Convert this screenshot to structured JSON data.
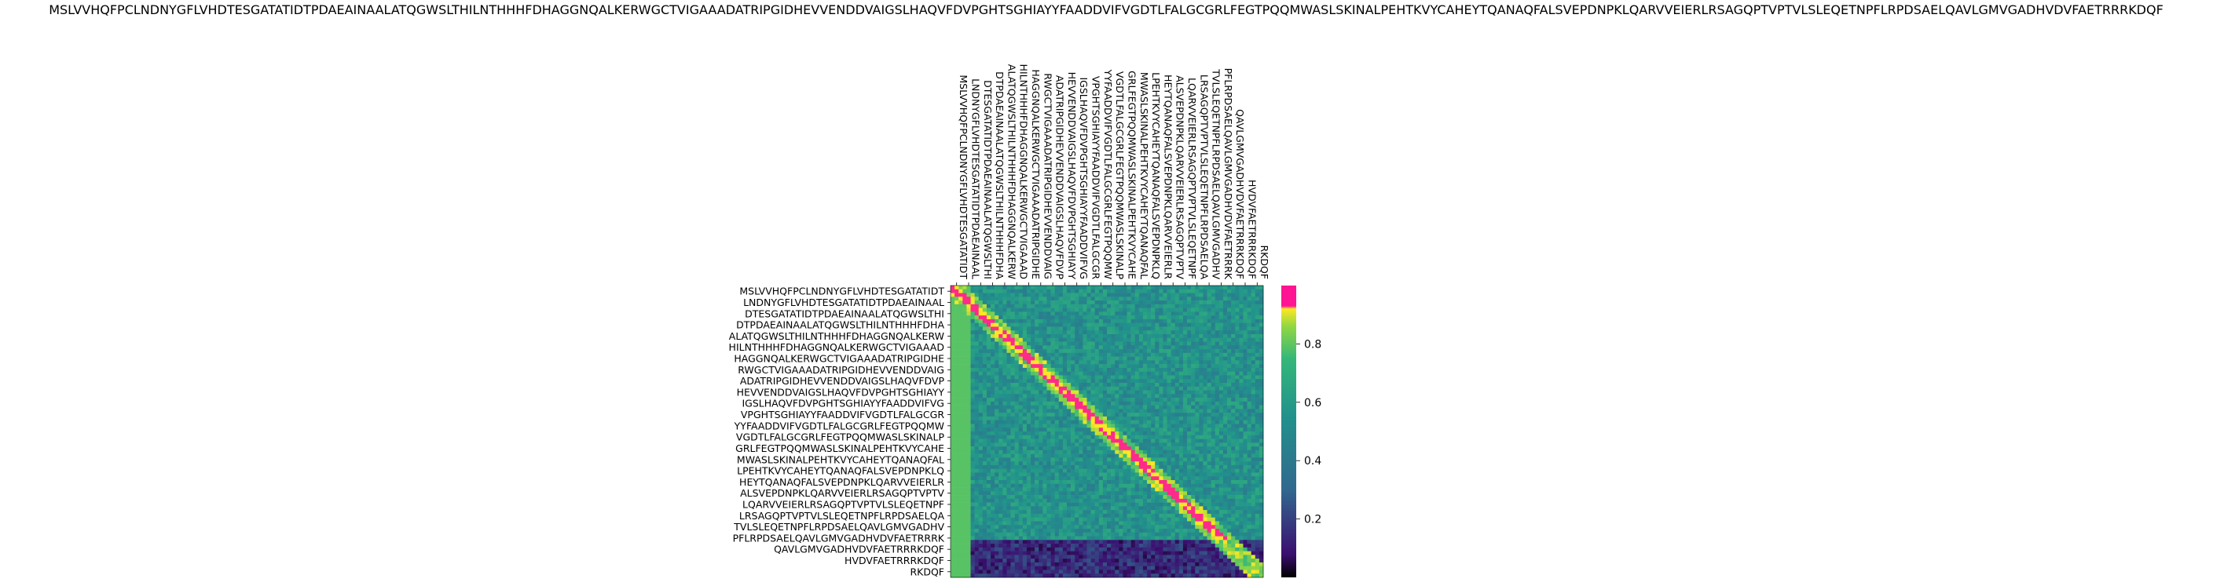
{
  "chart_data": {
    "type": "heatmap",
    "title": "MSLVVHQFPCLNDNYGFLVHDTESGATATIDTPDAEAINAALATQGWSLTHILNTHHHFDHAGGNQALKERWGCTVIGAAADATRIPGIDHEVVENDDVAIGSLHAQVFDVPGHTSGHIAYYFAADDVIFVGDTLFALGCGRLFEGTPQQMWASLSKINALPEHTKVYCAHEYTQANAQFALSVEPDNPKLQARVVEIERLRSAGQPTVPTVLSLEQETNPFLRPDSAELQAVLGMVGADHVDVFAETRRRKDQF",
    "row_labels": [
      "MSLVVHQFPCLNDNYGFLVHDTESGATATIDT",
      "LNDNYGFLVHDTESGATATIDTPDAEAINAAL",
      "DTESGATATIDTPDAEAINAALATQGWSLTHI",
      "DTPDAEAINAALATQGWSLTHILNTHHHFDHA",
      "ALATQGWSLTHILNTHHHFDHAGGNQALKERW",
      "HILNTHHHFDHAGGNQALKERWGCTVIGAAAD",
      "HAGGNQALKERWGCTVIGAAADATRIPGIDHE",
      "RWGCTVIGAAADATRIPGIDHEVVENDDVAIG",
      "ADATRIPGIDHEVVENDDVAIGSLHAQVFDVP",
      "HEVVENDDVAIGSLHAQVFDVPGHTSGHIAYY",
      "IGSLHAQVFDVPGHTSGHIAYYFAADDVIFVG",
      "VPGHTSGHIAYYFAADDVIFVGDTLFALGCGR",
      "YYFAADDVIFVGDTLFALGCGRLFEGTPQQMW",
      "VGDTLFALGCGRLFEGTPQQMWASLSKINALP",
      "GRLFEGTPQQMWASLSKINALPEHTKVYCAHE",
      "MWASLSKINALPEHTKVYCAHEYTQANAQFAL",
      "LPEHTKVYCAHEYTQANAQFALSVEPDNPKLQ",
      "HEYTQANAQFALSVEPDNPKLQARVVEIERLR",
      "ALSVEPDNPKLQARVVEIERLRSAGQPTVPTV",
      "LQARVVEIERLRSAGQPTVPTVLSLEQETNPF",
      "LRSAGQPTVPTVLSLEQETNPFLRPDSAELQA",
      "TVLSLEQETNPFLRPDSAELQAVLGMVGADHV",
      "PFLRPDSAELQAVLGMVGADHVDVFAETRRRK",
      "QAVLGMVGADHVDVFAETRRRKDQF",
      "HVDVFAETRRRKDQF",
      "RKDQF"
    ],
    "col_labels": [
      "MSLVVHQFPCLNDNYGFLVHDTESGATATIDT",
      "LNDNYGFLVHDTESGATATIDTPDAEAINAAL",
      "DTESGATATIDTPDAEAINAALATQGWSLTHI",
      "DTPDAEAINAALATQGWSLTHILNTHHHFDHA",
      "ALATQGWSLTHILNTHHHFDHAGGNQALKERW",
      "HILNTHHHFDHAGGNQALKERWGCTVIGAAAD",
      "HAGGNQALKERWGCTVIGAAADATRIPGIDHE",
      "RWGCTVIGAAADATRIPGIDHEVVENDDVAIG",
      "ADATRIPGIDHEVVENDDVAIGSLHAQVFDVP",
      "HEVVENDDVAIGSLHAQVFDVPGHTSGHIAYY",
      "IGSLHAQVFDVPGHTSGHIAYYFAADDVIFVG",
      "VPGHTSGHIAYYFAADDVIFVGDTLFALGCGR",
      "YYFAADDVIFVGDTLFALGCGRLFEGTPQQMW",
      "VGDTLFALGCGRLFEGTPQQMWASLSKINALP",
      "GRLFEGTPQQMWASLSKINALPEHTKVYCAHE",
      "MWASLSKINALPEHTKVYCAHEYTQANAQFAL",
      "LPEHTKVYCAHEYTQANAQFALSVEPDNPKLQ",
      "HEYTQANAQFALSVEPDNPKLQARVVEIERLR",
      "ALSVEPDNPKLQARVVEIERLRSAGQPTVPTV",
      "LQARVVEIERLRSAGQPTVPTVLSLEQETNPF",
      "LRSAGQPTVPTVLSLEQETNPFLRPDSAELQA",
      "TVLSLEQETNPFLRPDSAELQAVLGMVGADHV",
      "PFLRPDSAELQAVLGMVGADHVDVFAETRRRK",
      "QAVLGMVGADHVDVFAETRRRKDQF",
      "HVDVFAETRRRKDQF",
      "RKDQF"
    ],
    "colorbar": {
      "ticks": [
        0.2,
        0.4,
        0.6,
        0.8
      ],
      "tick_labels": [
        "0.2",
        "0.4",
        "0.6",
        "0.8"
      ],
      "range": [
        0,
        1
      ],
      "colors": [
        "#000000",
        "#3b0f70",
        "#31688e",
        "#21918c",
        "#35b779",
        "#90d743",
        "#fde725",
        "#ff1493"
      ]
    },
    "diagonal_highlight_color": "#ff2a8a",
    "background_level": 0.55,
    "grid": false,
    "legend": "colorbar-right"
  }
}
